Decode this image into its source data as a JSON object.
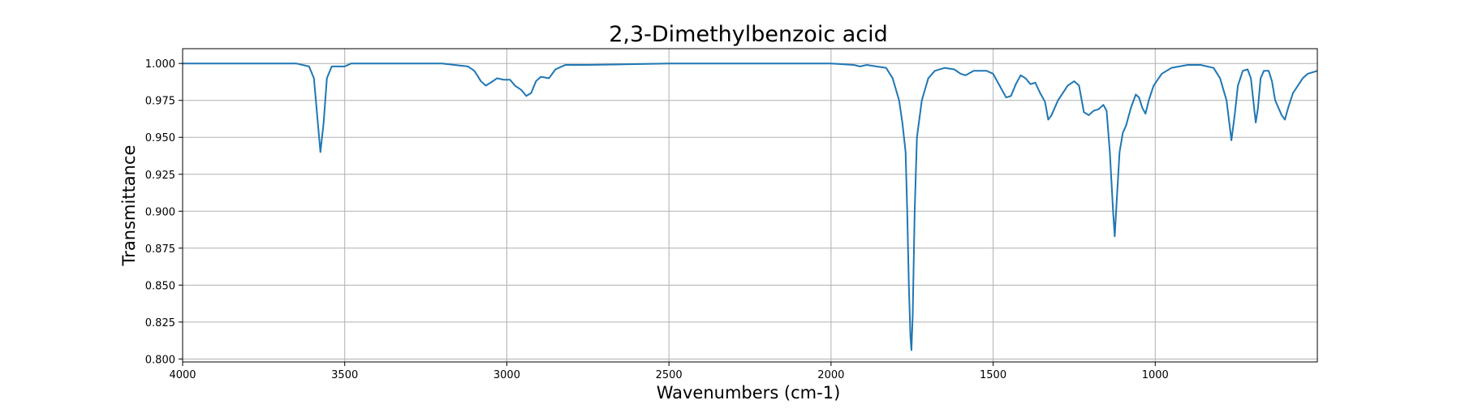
{
  "chart_data": {
    "type": "line",
    "title": "2,3-Dimethylbenzoic acid",
    "xlabel": "Wavenumbers (cm-1)",
    "ylabel": "Transmittance",
    "xlim": [
      4000,
      500
    ],
    "ylim": [
      0.798,
      1.01
    ],
    "x_inverted": true,
    "grid": true,
    "xticks": [
      4000,
      3500,
      3000,
      2500,
      2000,
      1500,
      1000
    ],
    "xtick_labels": [
      "4000",
      "3500",
      "3000",
      "2500",
      "2000",
      "1500",
      "1000"
    ],
    "yticks": [
      0.8,
      0.825,
      0.85,
      0.875,
      0.9,
      0.925,
      0.95,
      0.975,
      1.0
    ],
    "ytick_labels": [
      "0.800",
      "0.825",
      "0.850",
      "0.875",
      "0.900",
      "0.925",
      "0.950",
      "0.975",
      "1.000"
    ],
    "series": [
      {
        "color": "#1f77b4",
        "points": [
          [
            4000,
            1.0
          ],
          [
            3800,
            1.0
          ],
          [
            3650,
            1.0
          ],
          [
            3610,
            0.998
          ],
          [
            3595,
            0.99
          ],
          [
            3585,
            0.965
          ],
          [
            3575,
            0.94
          ],
          [
            3565,
            0.96
          ],
          [
            3555,
            0.99
          ],
          [
            3540,
            0.998
          ],
          [
            3500,
            0.998
          ],
          [
            3480,
            1.0
          ],
          [
            3200,
            1.0
          ],
          [
            3120,
            0.998
          ],
          [
            3100,
            0.995
          ],
          [
            3080,
            0.988
          ],
          [
            3065,
            0.985
          ],
          [
            3050,
            0.987
          ],
          [
            3030,
            0.99
          ],
          [
            3010,
            0.989
          ],
          [
            2990,
            0.989
          ],
          [
            2975,
            0.985
          ],
          [
            2955,
            0.982
          ],
          [
            2940,
            0.978
          ],
          [
            2925,
            0.98
          ],
          [
            2910,
            0.988
          ],
          [
            2895,
            0.991
          ],
          [
            2870,
            0.99
          ],
          [
            2850,
            0.996
          ],
          [
            2820,
            0.999
          ],
          [
            2750,
            0.999
          ],
          [
            2500,
            1.0
          ],
          [
            2000,
            1.0
          ],
          [
            1930,
            0.999
          ],
          [
            1910,
            0.998
          ],
          [
            1890,
            0.999
          ],
          [
            1860,
            0.998
          ],
          [
            1830,
            0.997
          ],
          [
            1810,
            0.99
          ],
          [
            1790,
            0.975
          ],
          [
            1780,
            0.96
          ],
          [
            1770,
            0.94
          ],
          [
            1765,
            0.9
          ],
          [
            1760,
            0.85
          ],
          [
            1755,
            0.815
          ],
          [
            1752,
            0.806
          ],
          [
            1748,
            0.83
          ],
          [
            1742,
            0.9
          ],
          [
            1735,
            0.95
          ],
          [
            1720,
            0.975
          ],
          [
            1700,
            0.99
          ],
          [
            1680,
            0.995
          ],
          [
            1650,
            0.997
          ],
          [
            1620,
            0.996
          ],
          [
            1600,
            0.993
          ],
          [
            1585,
            0.992
          ],
          [
            1560,
            0.995
          ],
          [
            1520,
            0.995
          ],
          [
            1500,
            0.993
          ],
          [
            1480,
            0.985
          ],
          [
            1460,
            0.977
          ],
          [
            1445,
            0.978
          ],
          [
            1430,
            0.986
          ],
          [
            1415,
            0.992
          ],
          [
            1400,
            0.99
          ],
          [
            1385,
            0.986
          ],
          [
            1370,
            0.987
          ],
          [
            1355,
            0.98
          ],
          [
            1340,
            0.974
          ],
          [
            1330,
            0.962
          ],
          [
            1320,
            0.965
          ],
          [
            1300,
            0.975
          ],
          [
            1270,
            0.985
          ],
          [
            1250,
            0.988
          ],
          [
            1235,
            0.985
          ],
          [
            1220,
            0.967
          ],
          [
            1205,
            0.965
          ],
          [
            1190,
            0.968
          ],
          [
            1175,
            0.969
          ],
          [
            1160,
            0.972
          ],
          [
            1150,
            0.968
          ],
          [
            1140,
            0.94
          ],
          [
            1130,
            0.9
          ],
          [
            1125,
            0.883
          ],
          [
            1118,
            0.91
          ],
          [
            1110,
            0.94
          ],
          [
            1100,
            0.953
          ],
          [
            1090,
            0.958
          ],
          [
            1075,
            0.97
          ],
          [
            1060,
            0.979
          ],
          [
            1050,
            0.977
          ],
          [
            1040,
            0.97
          ],
          [
            1030,
            0.966
          ],
          [
            1020,
            0.975
          ],
          [
            1005,
            0.985
          ],
          [
            980,
            0.993
          ],
          [
            950,
            0.997
          ],
          [
            900,
            0.999
          ],
          [
            860,
            0.999
          ],
          [
            820,
            0.997
          ],
          [
            800,
            0.99
          ],
          [
            780,
            0.975
          ],
          [
            765,
            0.948
          ],
          [
            755,
            0.965
          ],
          [
            745,
            0.985
          ],
          [
            730,
            0.995
          ],
          [
            715,
            0.996
          ],
          [
            705,
            0.99
          ],
          [
            695,
            0.97
          ],
          [
            690,
            0.96
          ],
          [
            683,
            0.97
          ],
          [
            675,
            0.99
          ],
          [
            665,
            0.995
          ],
          [
            650,
            0.995
          ],
          [
            640,
            0.988
          ],
          [
            630,
            0.975
          ],
          [
            620,
            0.97
          ],
          [
            610,
            0.965
          ],
          [
            600,
            0.962
          ],
          [
            590,
            0.97
          ],
          [
            575,
            0.98
          ],
          [
            560,
            0.985
          ],
          [
            545,
            0.99
          ],
          [
            530,
            0.993
          ],
          [
            500,
            0.995
          ]
        ]
      }
    ]
  }
}
